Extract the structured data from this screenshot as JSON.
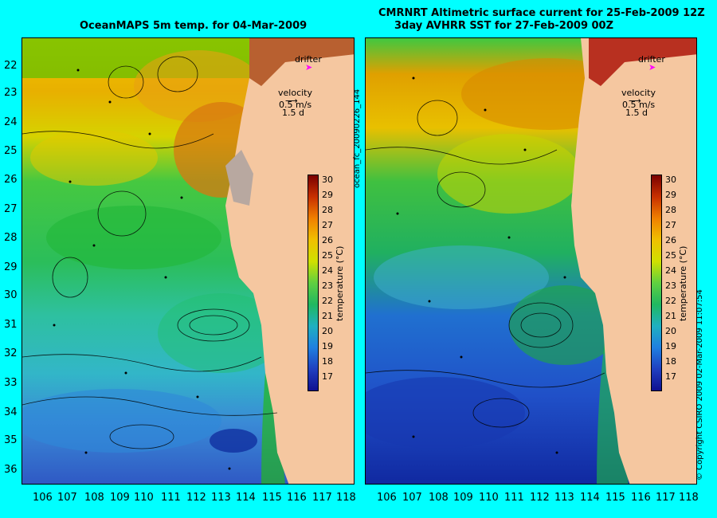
{
  "left_panel": {
    "title": "OceanMAPS 5m temp. for 04-Mar-2009"
  },
  "right_panel": {
    "title_line1": "CMRNRT Altimetric surface current for 25-Feb-2009 12Z",
    "title_line2": "3day AVHRR SST for 27-Feb-2009 00Z"
  },
  "legend": {
    "drifter": "drifter",
    "velocity": "velocity",
    "speed": "0.5 m/s",
    "time": "1.5 d"
  },
  "colorbar": {
    "label": "temperature (°C)",
    "ticks": [
      "30",
      "29",
      "28",
      "27",
      "26",
      "25",
      "24",
      "23",
      "22",
      "21",
      "20",
      "19",
      "18",
      "17"
    ]
  },
  "axes": {
    "lat": [
      "22",
      "23",
      "24",
      "25",
      "26",
      "27",
      "28",
      "29",
      "30",
      "31",
      "32",
      "33",
      "34",
      "35",
      "36"
    ],
    "lon": [
      "106",
      "107",
      "108",
      "109",
      "110",
      "111",
      "112",
      "113",
      "114",
      "115",
      "116",
      "117",
      "118"
    ]
  },
  "side_label": "ocean_fc_20090226_144",
  "copyright": "© Copyright CSIRO 2009   02-Mar-2009 11:07:54",
  "colors": {
    "background": "#00ffff",
    "land": "#f5c7a0",
    "drifter": "#ff00ff"
  }
}
